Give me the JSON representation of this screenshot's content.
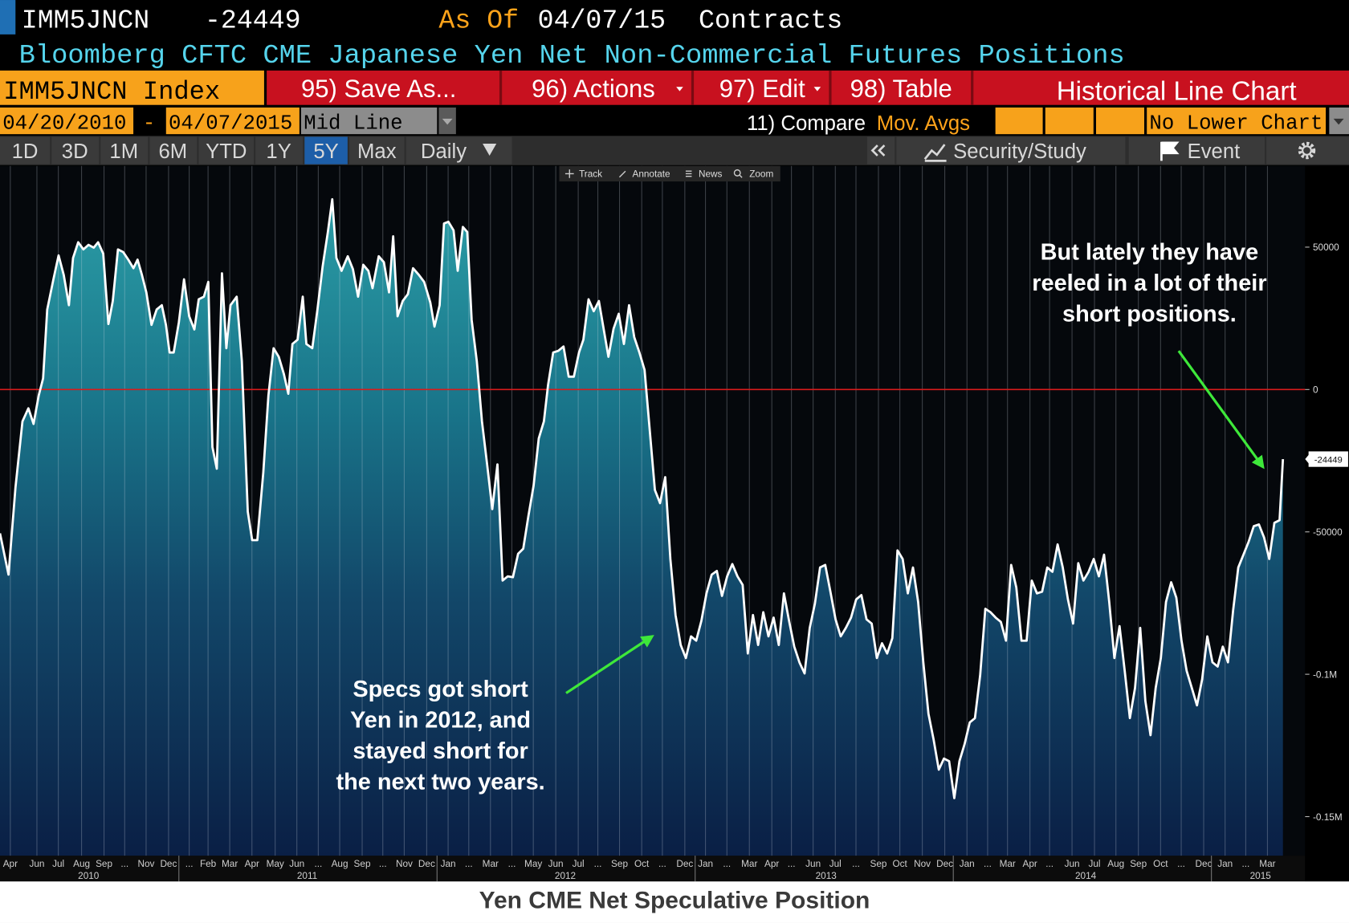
{
  "header": {
    "ticker": "IMM5JNCN",
    "last": "-24449",
    "as_of_label": "As Of",
    "as_of": "04/07/15",
    "units": "Contracts",
    "description": "Bloomberg CFTC CME Japanese Yen Net Non-Commercial Futures Positions"
  },
  "toolbar": {
    "security": "IMM5JNCN Index",
    "buttons": [
      "95) Save As...",
      "96) Actions",
      "97) Edit",
      "98) Table"
    ],
    "view": "Historical Line Chart",
    "start": "04/20/2010",
    "range_sep": "-",
    "end": "04/07/2015",
    "mode": "Mid Line",
    "compare": "11) Compare",
    "overlay": "Mov. Avgs",
    "lower": "No Lower Chart",
    "ranges": [
      "1D",
      "3D",
      "1M",
      "6M",
      "YTD",
      "1Y",
      "5Y",
      "Max"
    ],
    "frequency": "Daily",
    "study": "Security/Study",
    "event": "Event",
    "chart_tools": [
      "Track",
      "Annotate",
      "News",
      "Zoom"
    ]
  },
  "chart_data": {
    "type": "line",
    "caption": "Yen CME Net Speculative Position",
    "series": [
      {
        "color": "#ffffff",
        "x": [
          2010.307,
          2010.34,
          2010.367,
          2010.394,
          2010.417,
          2010.437,
          2010.457,
          2010.474,
          2010.49,
          2010.514,
          2010.534,
          2010.554,
          2010.574,
          2010.59,
          2010.61,
          2010.63,
          2010.65,
          2010.67,
          2010.687,
          2010.707,
          2010.727,
          2010.744,
          2010.764,
          2010.784,
          2010.804,
          2010.824,
          2010.84,
          2010.857,
          2010.874,
          2010.894,
          2010.914,
          2010.934,
          2010.95,
          2010.964,
          2010.98,
          2011.0,
          2011.02,
          2011.04,
          2011.06,
          2011.077,
          2011.097,
          2011.114,
          2011.13,
          2011.147,
          2011.167,
          2011.184,
          2011.2,
          2011.224,
          2011.244,
          2011.267,
          2011.284,
          2011.304,
          2011.327,
          2011.347,
          2011.367,
          2011.387,
          2011.407,
          2011.424,
          2011.44,
          2011.46,
          2011.48,
          2011.494,
          2011.517,
          2011.537,
          2011.557,
          2011.577,
          2011.594,
          2011.61,
          2011.63,
          2011.654,
          2011.674,
          2011.694,
          2011.714,
          2011.734,
          2011.75,
          2011.774,
          2011.794,
          2011.814,
          2011.83,
          2011.847,
          2011.867,
          2011.887,
          2011.907,
          2011.93,
          2011.95,
          2011.974,
          2011.99,
          2012.01,
          2012.027,
          2012.044,
          2012.064,
          2012.08,
          2012.1,
          2012.117,
          2012.134,
          2012.154,
          2012.174,
          2012.194,
          2012.214,
          2012.234,
          2012.254,
          2012.274,
          2012.294,
          2012.314,
          2012.334,
          2012.354,
          2012.374,
          2012.394,
          2012.414,
          2012.43,
          2012.45,
          2012.47,
          2012.49,
          2012.51,
          2012.53,
          2012.55,
          2012.567,
          2012.587,
          2012.607,
          2012.627,
          2012.647,
          2012.664,
          2012.684,
          2012.704,
          2012.724,
          2012.744,
          2012.764,
          2012.784,
          2012.804,
          2012.824,
          2012.844,
          2012.864,
          2012.884,
          2012.904,
          2012.924,
          2012.944,
          2012.964,
          2012.984,
          2013.004,
          2013.024,
          2013.044,
          2013.064,
          2013.084,
          2013.104,
          2013.124,
          2013.144,
          2013.164,
          2013.184,
          2013.204,
          2013.224,
          2013.244,
          2013.264,
          2013.284,
          2013.304,
          2013.324,
          2013.344,
          2013.364,
          2013.384,
          2013.404,
          2013.424,
          2013.444,
          2013.464,
          2013.484,
          2013.504,
          2013.524,
          2013.544,
          2013.564,
          2013.584,
          2013.604,
          2013.624,
          2013.644,
          2013.664,
          2013.684,
          2013.704,
          2013.724,
          2013.744,
          2013.764,
          2013.784,
          2013.804,
          2013.824,
          2013.844,
          2013.864,
          2013.884,
          2013.904,
          2013.924,
          2013.944,
          2013.964,
          2013.984,
          2014.004,
          2014.024,
          2014.044,
          2014.064,
          2014.084,
          2014.104,
          2014.124,
          2014.144,
          2014.164,
          2014.184,
          2014.204,
          2014.224,
          2014.244,
          2014.264,
          2014.284,
          2014.304,
          2014.324,
          2014.344,
          2014.364,
          2014.384,
          2014.404,
          2014.424,
          2014.444,
          2014.464,
          2014.484,
          2014.504,
          2014.524,
          2014.544,
          2014.564,
          2014.584,
          2014.604,
          2014.624,
          2014.644,
          2014.664,
          2014.684,
          2014.704,
          2014.724,
          2014.744,
          2014.764,
          2014.784,
          2014.804,
          2014.824,
          2014.844,
          2014.864,
          2014.884,
          2014.904,
          2014.924,
          2014.944,
          2014.964,
          2014.984,
          2015.004,
          2015.024,
          2015.044,
          2015.064,
          2015.084,
          2015.104,
          2015.124,
          2015.144,
          2015.164,
          2015.184,
          2015.204,
          2015.224,
          2015.244,
          2015.264,
          2015.277
        ],
        "values": [
          -50500,
          -65000,
          -34400,
          -11200,
          -6600,
          -12100,
          -2100,
          3900,
          28100,
          38700,
          47100,
          40200,
          29600,
          46200,
          51700,
          49200,
          50800,
          49800,
          51700,
          47700,
          23000,
          31100,
          49200,
          48300,
          45600,
          42600,
          45600,
          40200,
          34100,
          22700,
          28100,
          29600,
          22700,
          13000,
          13000,
          23600,
          38700,
          25700,
          21100,
          31700,
          32600,
          37800,
          -20200,
          -27800,
          40800,
          14500,
          29600,
          32600,
          10000,
          -42900,
          -52900,
          -52900,
          -29300,
          -2100,
          14500,
          11500,
          5400,
          -1500,
          16000,
          17500,
          32600,
          16000,
          14500,
          28100,
          43200,
          55300,
          66800,
          46200,
          41700,
          46800,
          42300,
          32600,
          43800,
          41700,
          35600,
          46800,
          44700,
          34100,
          53800,
          25700,
          31100,
          33500,
          42600,
          40200,
          37800,
          30500,
          22100,
          29600,
          58300,
          58900,
          55900,
          41700,
          57100,
          55300,
          24500,
          10000,
          -11200,
          -26300,
          -42000,
          -26300,
          -67100,
          -65600,
          -65900,
          -57700,
          -55900,
          -44400,
          -33800,
          -17200,
          -11200,
          1500,
          13000,
          13600,
          15100,
          4500,
          4500,
          13000,
          17500,
          31700,
          27500,
          31100,
          20500,
          11500,
          21400,
          26600,
          16000,
          29600,
          18400,
          13000,
          6900,
          -14200,
          -35300,
          -39900,
          -30800,
          -59500,
          -79200,
          -89700,
          -94300,
          -86700,
          -88200,
          -81300,
          -71600,
          -65000,
          -63700,
          -72500,
          -65600,
          -61300,
          -65600,
          -68600,
          -92700,
          -79200,
          -89700,
          -78200,
          -86700,
          -80100,
          -89700,
          -71600,
          -81300,
          -90300,
          -95800,
          -99700,
          -83700,
          -75200,
          -62500,
          -61600,
          -71000,
          -80700,
          -86700,
          -83700,
          -80100,
          -73700,
          -72200,
          -80700,
          -82200,
          -94300,
          -89100,
          -92700,
          -87300,
          -56500,
          -59500,
          -71600,
          -62500,
          -74600,
          -95800,
          -113900,
          -123000,
          -133500,
          -129600,
          -130500,
          -143500,
          -130500,
          -124500,
          -116900,
          -115400,
          -100300,
          -77000,
          -78200,
          -80100,
          -81600,
          -88200,
          -61600,
          -69500,
          -88200,
          -88200,
          -67100,
          -71600,
          -71000,
          -62500,
          -64000,
          -54400,
          -62500,
          -73700,
          -82200,
          -61000,
          -67100,
          -64000,
          -59500,
          -65600,
          -58000,
          -74600,
          -94300,
          -83100,
          -98800,
          -115400,
          -104800,
          -83700,
          -109400,
          -121400,
          -104800,
          -94300,
          -74600,
          -67700,
          -73100,
          -88200,
          -98800,
          -104800,
          -110900,
          -101800,
          -86700,
          -95800,
          -97300,
          -90300,
          -95800,
          -77600,
          -62500,
          -58000,
          -53500,
          -48000,
          -47400,
          -52000,
          -59500,
          -46800,
          -45900,
          -24449
        ]
      }
    ],
    "xlim": [
      2010.307,
      2015.363
    ],
    "ylim": [
      -163700,
      78500
    ],
    "yticks": [
      50000,
      0,
      -50000,
      {
        "value": -100000,
        "label": "-0.1M"
      },
      {
        "value": -150000,
        "label": "-0.15M"
      }
    ],
    "xticks": [
      {
        "value": 2010.347,
        "label": "Apr"
      },
      {
        "value": 2010.45,
        "label": "Jun"
      },
      {
        "value": 2010.533,
        "label": "Jul"
      },
      {
        "value": 2010.623,
        "label": "Aug"
      },
      {
        "value": 2010.71,
        "label": "Sep"
      },
      {
        "value": 2010.79,
        "label": "..."
      },
      {
        "value": 2010.873,
        "label": "Nov"
      },
      {
        "value": 2010.96,
        "label": "Dec"
      },
      {
        "value": 2011.04,
        "label": "..."
      },
      {
        "value": 2011.113,
        "label": "Feb"
      },
      {
        "value": 2011.197,
        "label": "Mar"
      },
      {
        "value": 2011.283,
        "label": "Apr"
      },
      {
        "value": 2011.373,
        "label": "May"
      },
      {
        "value": 2011.457,
        "label": "Jun"
      },
      {
        "value": 2011.54,
        "label": "..."
      },
      {
        "value": 2011.623,
        "label": "Aug"
      },
      {
        "value": 2011.71,
        "label": "Sep"
      },
      {
        "value": 2011.79,
        "label": "..."
      },
      {
        "value": 2011.873,
        "label": "Nov"
      },
      {
        "value": 2011.96,
        "label": "Dec"
      },
      {
        "value": 2012.043,
        "label": "Jan"
      },
      {
        "value": 2012.123,
        "label": "..."
      },
      {
        "value": 2012.207,
        "label": "Mar"
      },
      {
        "value": 2012.29,
        "label": "..."
      },
      {
        "value": 2012.373,
        "label": "May"
      },
      {
        "value": 2012.46,
        "label": "Jun"
      },
      {
        "value": 2012.547,
        "label": "Jul"
      },
      {
        "value": 2012.623,
        "label": "..."
      },
      {
        "value": 2012.707,
        "label": "Sep"
      },
      {
        "value": 2012.793,
        "label": "Oct"
      },
      {
        "value": 2012.873,
        "label": "..."
      },
      {
        "value": 2012.96,
        "label": "Dec"
      },
      {
        "value": 2013.04,
        "label": "Jan"
      },
      {
        "value": 2013.123,
        "label": "..."
      },
      {
        "value": 2013.21,
        "label": "Mar"
      },
      {
        "value": 2013.297,
        "label": "Apr"
      },
      {
        "value": 2013.373,
        "label": "..."
      },
      {
        "value": 2013.457,
        "label": "Jun"
      },
      {
        "value": 2013.543,
        "label": "Jul"
      },
      {
        "value": 2013.623,
        "label": "..."
      },
      {
        "value": 2013.71,
        "label": "Sep"
      },
      {
        "value": 2013.793,
        "label": "Oct"
      },
      {
        "value": 2013.88,
        "label": "Nov"
      },
      {
        "value": 2013.967,
        "label": "Dec"
      },
      {
        "value": 2014.053,
        "label": "Jan"
      },
      {
        "value": 2014.133,
        "label": "..."
      },
      {
        "value": 2014.21,
        "label": "Mar"
      },
      {
        "value": 2014.297,
        "label": "Apr"
      },
      {
        "value": 2014.373,
        "label": "..."
      },
      {
        "value": 2014.46,
        "label": "Jun"
      },
      {
        "value": 2014.547,
        "label": "Jul"
      },
      {
        "value": 2014.63,
        "label": "Aug"
      },
      {
        "value": 2014.717,
        "label": "Sep"
      },
      {
        "value": 2014.803,
        "label": "Oct"
      },
      {
        "value": 2014.883,
        "label": "..."
      },
      {
        "value": 2014.97,
        "label": "Dec"
      },
      {
        "value": 2015.053,
        "label": "Jan"
      },
      {
        "value": 2015.133,
        "label": "..."
      },
      {
        "value": 2015.217,
        "label": "Mar"
      }
    ],
    "year_labels": [
      {
        "value": 2010.65,
        "label": "2010"
      },
      {
        "value": 2011.497,
        "label": "2011"
      },
      {
        "value": 2012.497,
        "label": "2012"
      },
      {
        "value": 2013.507,
        "label": "2013"
      },
      {
        "value": 2014.513,
        "label": "2014"
      },
      {
        "value": 2015.19,
        "label": "2015"
      }
    ],
    "year_separators": [
      2011,
      2012,
      2013,
      2014,
      2015
    ],
    "reference_line": 0,
    "reference_color": "#d81b1b",
    "grid": true,
    "annotations": [
      {
        "lines": [
          "Specs got short",
          "Yen in 2012, and",
          "stayed short for",
          "the next two years."
        ]
      },
      {
        "lines": [
          "But lately they have",
          "reeled in a lot of their",
          "short positions."
        ]
      }
    ]
  }
}
